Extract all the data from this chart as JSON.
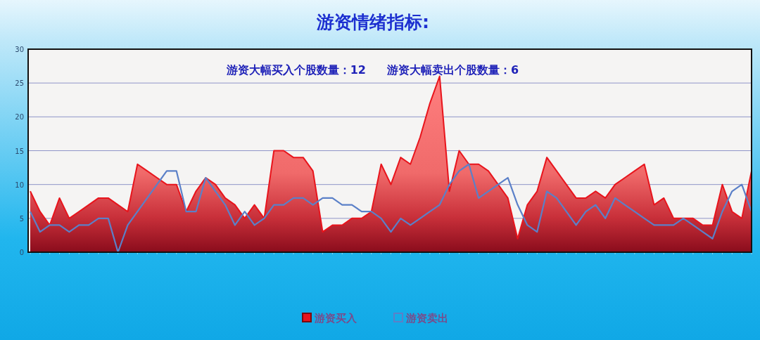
{
  "chart_data": {
    "type": "area",
    "title": "游资情绪指标:",
    "annotations": [
      "游资大幅买入个股数量：12",
      "游资大幅卖出个股数量：6"
    ],
    "categories": [
      null,
      null,
      null,
      null,
      null,
      null,
      null,
      null,
      null,
      null,
      null,
      null,
      null,
      null,
      null,
      null,
      null,
      null,
      null,
      null,
      null,
      null,
      null,
      null,
      null,
      null,
      null,
      null,
      null,
      null,
      null,
      null,
      null,
      null,
      null,
      null,
      null,
      null,
      null,
      null,
      null,
      null,
      null,
      null,
      null,
      null,
      null,
      null,
      null,
      null,
      null,
      null,
      null,
      null,
      null,
      null,
      null,
      null,
      null,
      null,
      null,
      null,
      null,
      null,
      null,
      null,
      null,
      null,
      null,
      null,
      null,
      null,
      null,
      null,
      null
    ],
    "series": [
      {
        "name": "游资买入",
        "color": "#e8141c",
        "values": [
          9,
          6,
          4,
          8,
          5,
          6,
          7,
          8,
          8,
          7,
          6,
          13,
          12,
          11,
          10,
          10,
          6,
          9,
          11,
          10,
          8,
          7,
          5,
          7,
          5,
          15,
          15,
          14,
          14,
          12,
          3,
          4,
          4,
          5,
          5,
          6,
          13,
          10,
          14,
          13,
          17,
          22,
          26,
          9,
          15,
          13,
          13,
          12,
          10,
          8,
          2,
          7,
          9,
          14,
          12,
          10,
          8,
          8,
          9,
          8,
          10,
          11,
          12,
          13,
          7,
          8,
          5,
          5,
          5,
          4,
          4,
          10,
          6,
          5,
          12
        ]
      },
      {
        "name": "游资卖出",
        "type": "line",
        "color": "#5b80c8",
        "values": [
          6,
          3,
          4,
          4,
          3,
          4,
          4,
          5,
          5,
          0,
          4,
          6,
          8,
          10,
          12,
          12,
          6,
          6,
          11,
          9,
          7,
          4,
          6,
          4,
          5,
          7,
          7,
          8,
          8,
          7,
          8,
          8,
          7,
          7,
          6,
          6,
          5,
          3,
          5,
          4,
          5,
          6,
          7,
          10,
          12,
          13,
          8,
          9,
          10,
          11,
          7,
          4,
          3,
          9,
          8,
          6,
          4,
          6,
          7,
          5,
          8,
          7,
          6,
          5,
          4,
          4,
          4,
          5,
          4,
          3,
          2,
          6,
          9,
          10,
          6
        ]
      }
    ],
    "ylim": [
      0,
      30
    ],
    "yticks": [
      0,
      5,
      10,
      15,
      20,
      25,
      30
    ],
    "grid": "y",
    "legend": "bottom"
  }
}
